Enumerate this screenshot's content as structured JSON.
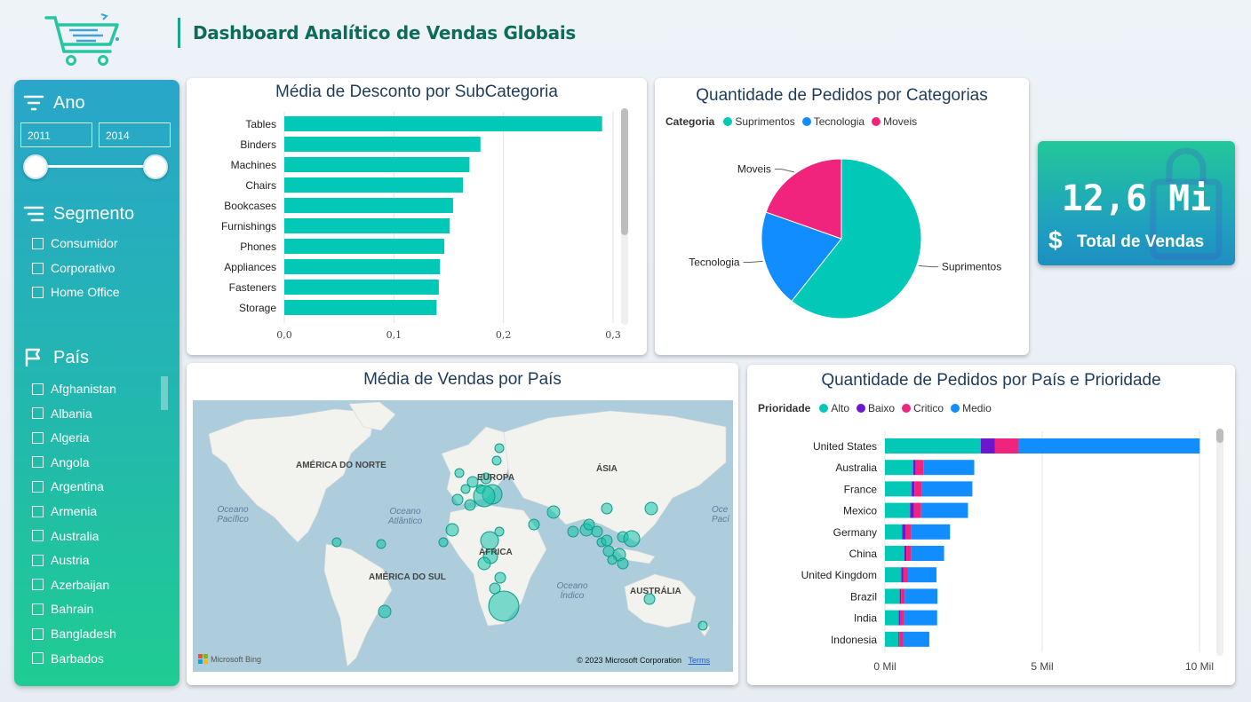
{
  "header": {
    "title": "Dashboard Analítico de Vendas Globais",
    "logo_icon": "shopping-cart-icon"
  },
  "sidebar": {
    "year": {
      "label": "Ano",
      "from": "2011",
      "to": "2014"
    },
    "segment": {
      "label": "Segmento",
      "options": [
        "Consumidor",
        "Corporativo",
        "Home Office"
      ]
    },
    "country": {
      "label": "País",
      "options": [
        "Afghanistan",
        "Albania",
        "Algeria",
        "Angola",
        "Argentina",
        "Armenia",
        "Australia",
        "Austria",
        "Azerbaijan",
        "Bahrain",
        "Bangladesh",
        "Barbados"
      ]
    }
  },
  "colors": {
    "teal": "#01c8b7",
    "blue": "#118dff",
    "pink": "#f0237d",
    "purple": "#6b17cc"
  },
  "chart_discount": {
    "title": "Média de Desconto por SubCategoria",
    "chart_data": {
      "type": "bar",
      "orientation": "horizontal",
      "categories": [
        "Tables",
        "Binders",
        "Machines",
        "Chairs",
        "Bookcases",
        "Furnishings",
        "Phones",
        "Appliances",
        "Fasteners",
        "Storage"
      ],
      "values": [
        0.29,
        0.179,
        0.169,
        0.163,
        0.154,
        0.151,
        0.146,
        0.142,
        0.141,
        0.139
      ],
      "xlim": [
        0,
        0.3
      ],
      "ticks": [
        "0,0",
        "0,1",
        "0,2",
        "0,3"
      ],
      "tick_values": [
        0,
        0.1,
        0.2,
        0.3
      ]
    }
  },
  "chart_categories": {
    "title": "Quantidade de Pedidos por Categorias",
    "legend_title": "Categoria",
    "chart_data": {
      "type": "pie",
      "labels": [
        "Suprimentos",
        "Tecnologia",
        "Moveis"
      ],
      "values": [
        60.7,
        19.7,
        19.6
      ],
      "colors": [
        "#01c8b7",
        "#118dff",
        "#f0237d"
      ]
    }
  },
  "kpi": {
    "value": "12,6 Mi",
    "label": "Total de Vendas",
    "symbol": "$"
  },
  "map": {
    "title": "Média de Vendas por País",
    "continents": [
      "AMÉRICA DO NORTE",
      "EUROPA",
      "ÁSIA",
      "ÁFRICA",
      "AMÉRICA DO SUL",
      "AUSTRÁLIA"
    ],
    "oceans": [
      "Oceano Pacífico",
      "Oceano Atlântico",
      "Oceano Índico",
      "Oce Pací"
    ],
    "attribution": "© 2023 Microsoft Corporation",
    "terms": "Terms",
    "brand": "Microsoft Bing"
  },
  "chart_priority": {
    "title": "Quantidade de Pedidos por País e Prioridade",
    "legend_title": "Prioridade",
    "chart_data": {
      "type": "bar",
      "orientation": "horizontal",
      "stacked": true,
      "categories": [
        "United States",
        "Australia",
        "France",
        "Mexico",
        "Germany",
        "China",
        "United Kingdom",
        "Brazil",
        "India",
        "Indonesia"
      ],
      "series": [
        {
          "name": "Alto",
          "values": [
            3050,
            900,
            850,
            800,
            550,
            620,
            520,
            470,
            440,
            430
          ]
        },
        {
          "name": "Baixo",
          "values": [
            450,
            80,
            90,
            120,
            110,
            60,
            60,
            40,
            40,
            30
          ]
        },
        {
          "name": "Critico",
          "values": [
            750,
            240,
            220,
            230,
            180,
            160,
            140,
            120,
            130,
            120
          ]
        },
        {
          "name": "Medio",
          "values": [
            5760,
            1620,
            1620,
            1490,
            1230,
            1040,
            920,
            1040,
            1050,
            830
          ]
        }
      ],
      "xlim": [
        0,
        10000
      ],
      "ticks": [
        "0 Mil",
        "5 Mil",
        "10 Mil"
      ],
      "tick_values": [
        0,
        5000,
        10000
      ]
    }
  }
}
